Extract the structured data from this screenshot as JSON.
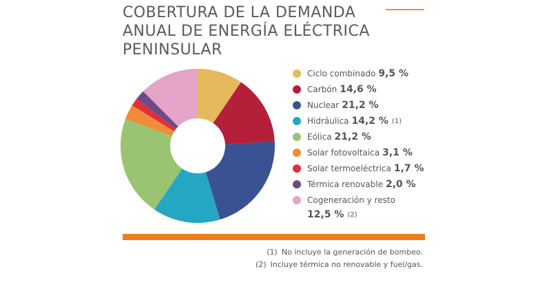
{
  "chart_data": {
    "type": "donut",
    "title_lines": [
      "COBERTURA DE LA DEMANDA",
      "ANUAL DE ENERGÍA ELÉCTRICA",
      "PENINSULAR"
    ],
    "categories": [
      "Ciclo combinado",
      "Carbón",
      "Nuclear",
      "Hidráulica",
      "Eólica",
      "Solar fotovoltaica",
      "Solar termoeléctrica",
      "Térmica renovable",
      "Cogeneración y resto"
    ],
    "values": [
      9.5,
      14.6,
      21.2,
      14.2,
      21.2,
      3.1,
      1.7,
      2.0,
      12.5
    ],
    "value_labels": [
      "9,5 %",
      "14,6 %",
      "21,2 %",
      "14,2 %",
      "21,2 %",
      "3,1 %",
      "1,7 %",
      "2,0 %",
      "12,5 %"
    ],
    "notes": [
      null,
      null,
      null,
      "(1)",
      null,
      null,
      null,
      null,
      "(2)"
    ],
    "colors": [
      "#e6b95c",
      "#b51f3a",
      "#3a5294",
      "#25a7c4",
      "#9bc472",
      "#ef8c3a",
      "#e0303a",
      "#6b4a8a",
      "#e3a4c8"
    ],
    "footnotes": [
      {
        "mark": "(1)",
        "text": "No incluye la generación de bombeo."
      },
      {
        "mark": "(2)",
        "text": "Incluye térmica no renovable y fuel/gas."
      }
    ]
  }
}
